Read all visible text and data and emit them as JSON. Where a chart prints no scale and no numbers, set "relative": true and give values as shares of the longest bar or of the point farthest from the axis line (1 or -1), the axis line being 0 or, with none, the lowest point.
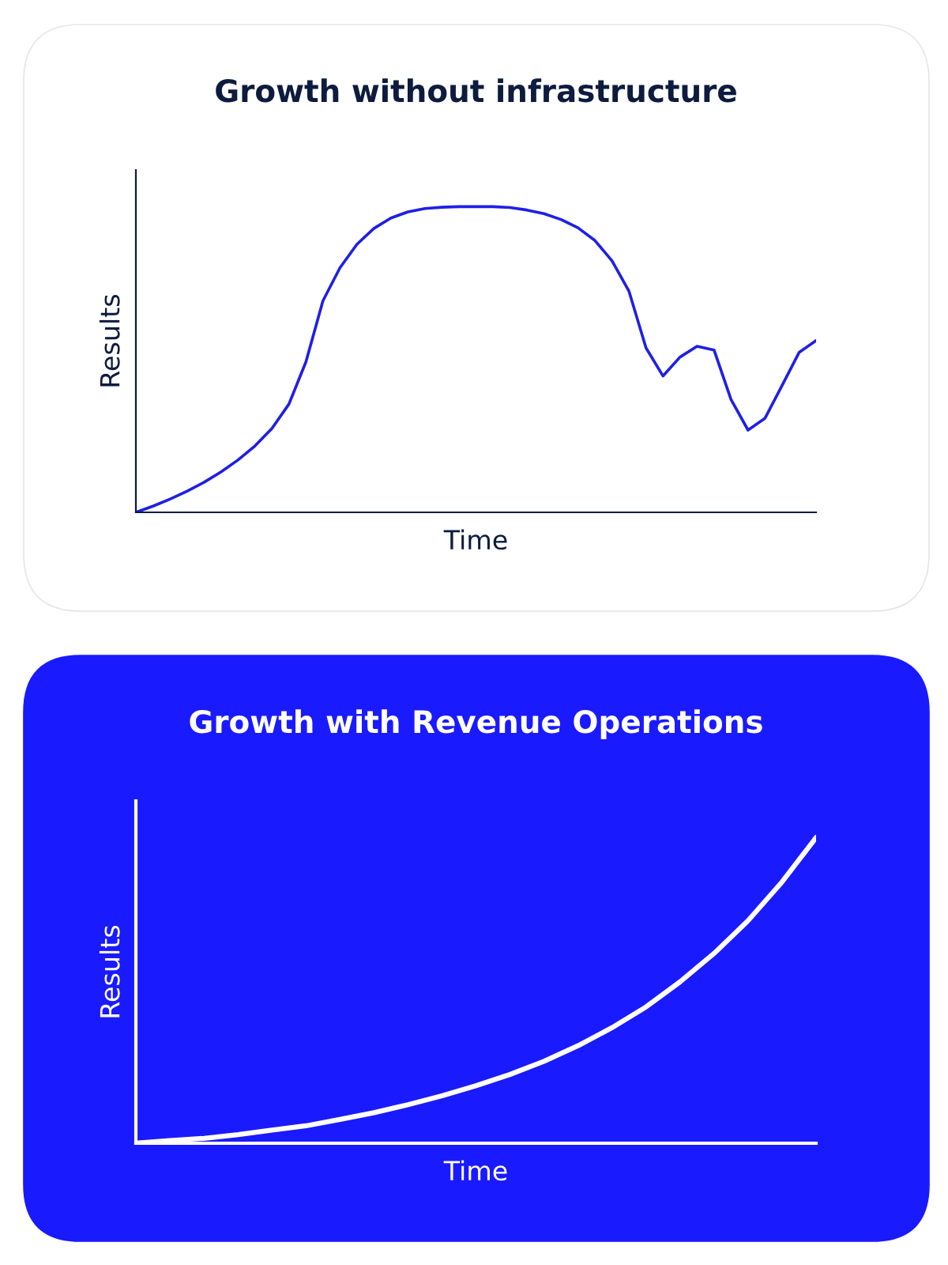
{
  "chart_data": [
    {
      "type": "line",
      "title": "Growth without infrastructure",
      "xlabel": "Time",
      "ylabel": "Results",
      "relative": true,
      "categories": [
        null,
        null,
        null,
        null,
        null,
        null,
        null,
        null,
        null,
        null,
        null,
        null,
        null,
        null,
        null,
        null,
        null,
        null,
        null,
        null,
        null,
        null,
        null,
        null,
        null,
        null,
        null,
        null,
        null,
        null,
        null,
        null,
        null,
        null,
        null,
        null,
        null,
        null,
        null,
        null,
        null
      ],
      "series": [
        {
          "color": "#1f1fe6",
          "values": [
            0,
            0.02,
            0.043,
            0.069,
            0.098,
            0.132,
            0.171,
            0.217,
            0.274,
            0.354,
            0.492,
            0.692,
            0.8,
            0.877,
            0.929,
            0.963,
            0.983,
            0.994,
            0.998,
            1,
            1,
            1,
            0.997,
            0.989,
            0.977,
            0.958,
            0.931,
            0.889,
            0.823,
            0.723,
            0.538,
            0.446,
            0.508,
            0.543,
            0.531,
            0.369,
            0.269,
            0.308,
            0.415,
            0.523,
            0.562
          ]
        }
      ]
    },
    {
      "type": "line",
      "title": "Growth with Revenue Operations",
      "xlabel": "Time",
      "ylabel": "Results",
      "relative": true,
      "categories": [
        null,
        null,
        null,
        null,
        null,
        null,
        null,
        null,
        null,
        null,
        null,
        null,
        null,
        null,
        null,
        null,
        null,
        null,
        null,
        null,
        null
      ],
      "series": [
        {
          "color": "#ffffff",
          "values": [
            0,
            0.009,
            0.016,
            0.028,
            0.043,
            0.057,
            0.078,
            0.1,
            0.126,
            0.155,
            0.188,
            0.225,
            0.268,
            0.319,
            0.378,
            0.446,
            0.528,
            0.621,
            0.728,
            0.855,
            1
          ]
        }
      ]
    }
  ]
}
